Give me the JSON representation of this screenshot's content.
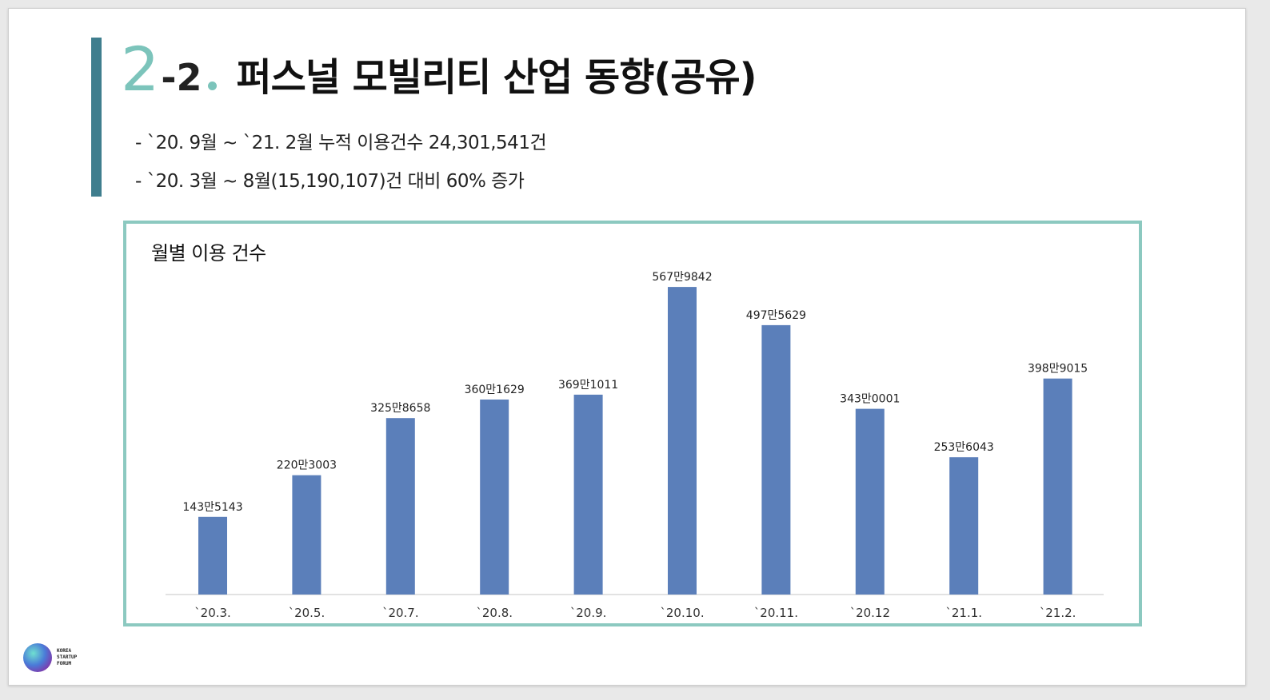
{
  "title": {
    "num_big": "2",
    "num_sub": "-2",
    "text": "퍼스널 모빌리티 산업 동향(공유)"
  },
  "bullets": [
    "- `20. 9월 ~ `21. 2월 누적 이용건수 24,301,541건",
    "- `20. 3월 ~ 8월(15,190,107)건 대비 60% 증가"
  ],
  "logo": {
    "icon": "korea-startup-forum-logo",
    "lines": [
      "KOREA",
      "STARTUP",
      "FORUM"
    ]
  },
  "colors": {
    "accent_bar": "#3f7e8e",
    "accent_teal": "#7cc4bb",
    "chart_border": "#8cc9c0",
    "bar": "#5b7fba"
  },
  "chart_data": {
    "type": "bar",
    "title": "월별 이용 건수",
    "categories": [
      "`20.3.",
      "`20.5.",
      "`20.7.",
      "`20.8.",
      "`20.9.",
      "`20.10.",
      "`20.11.",
      "`20.12",
      "`21.1.",
      "`21.2."
    ],
    "values": [
      1435143,
      2203003,
      3258658,
      3601629,
      3691011,
      5679842,
      4975629,
      3430001,
      2536043,
      3989015
    ],
    "data_labels": [
      "143만5143",
      "220만3003",
      "325만8658",
      "360만1629",
      "369만1011",
      "567만9842",
      "497만5629",
      "343만0001",
      "253만6043",
      "398만9015"
    ],
    "ylim": [
      0,
      5800000
    ],
    "grid": false,
    "legend": false
  }
}
